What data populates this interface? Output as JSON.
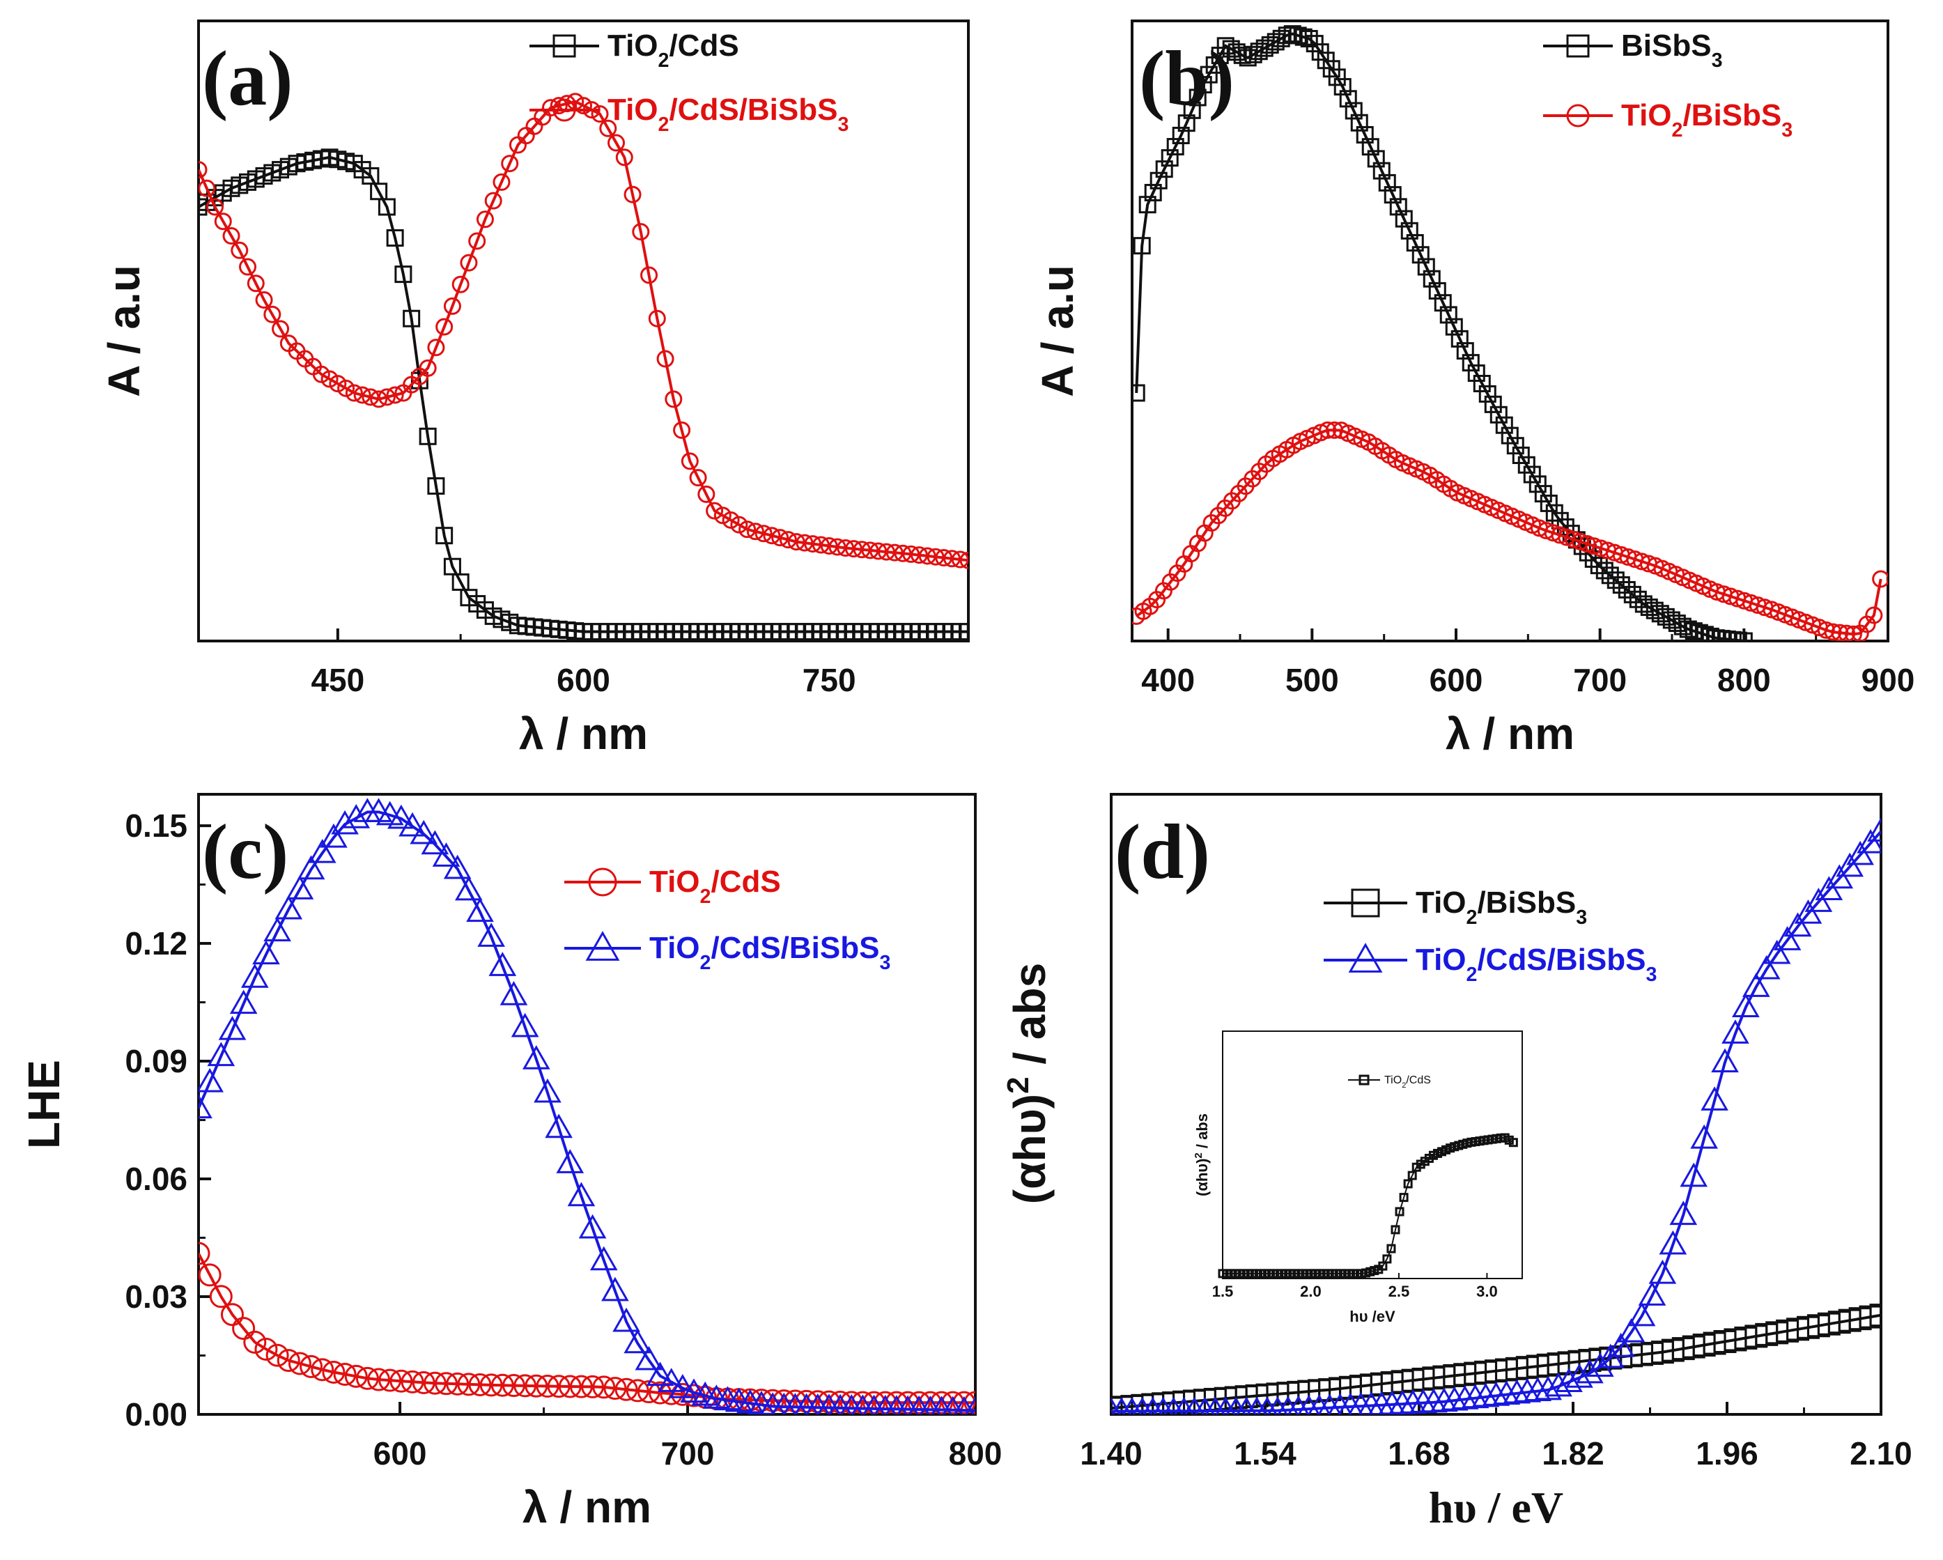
{
  "chart_data": [
    {
      "panel": "(a)",
      "type": "scatter",
      "xlabel": "λ / nm",
      "ylabel": "A / a.u",
      "xlim": [
        365,
        835
      ],
      "ylim": [
        0,
        1
      ],
      "xticks": [
        450,
        600,
        750
      ],
      "y_ticks_labeled": false,
      "legend_position": "top-right",
      "series": [
        {
          "name": "TiO2/CdS",
          "color": "#111111",
          "marker": "square",
          "x": [
            365,
            385,
            405,
            425,
            445,
            460,
            470,
            480,
            488,
            495,
            500,
            505,
            510,
            515,
            520,
            530,
            545,
            560,
            580,
            600,
            650,
            700,
            750,
            800,
            835
          ],
          "y": [
            0.7,
            0.73,
            0.75,
            0.77,
            0.78,
            0.77,
            0.75,
            0.7,
            0.62,
            0.52,
            0.42,
            0.33,
            0.25,
            0.17,
            0.12,
            0.07,
            0.04,
            0.025,
            0.02,
            0.015,
            0.015,
            0.015,
            0.015,
            0.015,
            0.015
          ]
        },
        {
          "name": "TiO2/CdS/BiSbS3",
          "color": "#e01010",
          "marker": "circle",
          "x": [
            365,
            375,
            390,
            405,
            420,
            440,
            460,
            475,
            490,
            505,
            520,
            540,
            560,
            580,
            595,
            610,
            625,
            635,
            645,
            655,
            665,
            680,
            700,
            730,
            760,
            800,
            835
          ],
          "y": [
            0.76,
            0.7,
            0.63,
            0.55,
            0.48,
            0.43,
            0.4,
            0.39,
            0.4,
            0.44,
            0.54,
            0.68,
            0.8,
            0.86,
            0.87,
            0.85,
            0.78,
            0.66,
            0.52,
            0.39,
            0.29,
            0.21,
            0.18,
            0.16,
            0.15,
            0.14,
            0.13
          ]
        }
      ]
    },
    {
      "panel": "(b)",
      "type": "scatter",
      "xlabel": "λ  / nm",
      "ylabel": "A / a.u",
      "xlim": [
        375,
        900
      ],
      "ylim": [
        0,
        1
      ],
      "xticks": [
        400,
        500,
        600,
        700,
        800,
        900
      ],
      "y_ticks_labeled": false,
      "legend_position": "top-right",
      "series": [
        {
          "name": "BiSbS3",
          "color": "#111111",
          "marker": "square",
          "x": [
            378,
            380,
            385,
            395,
            410,
            425,
            440,
            455,
            470,
            485,
            500,
            520,
            550,
            580,
            610,
            640,
            670,
            700,
            730,
            760,
            780,
            800
          ],
          "y": [
            0.4,
            0.6,
            0.7,
            0.75,
            0.82,
            0.9,
            0.96,
            0.94,
            0.96,
            0.98,
            0.97,
            0.9,
            0.75,
            0.6,
            0.45,
            0.32,
            0.2,
            0.12,
            0.06,
            0.02,
            0.005,
            0.0
          ]
        },
        {
          "name": "TiO2/BiSbS3",
          "color": "#e01010",
          "marker": "circle",
          "x": [
            378,
            390,
            410,
            430,
            450,
            470,
            490,
            510,
            520,
            540,
            560,
            580,
            600,
            630,
            660,
            700,
            740,
            780,
            820,
            860,
            880,
            893,
            895
          ],
          "y": [
            0.04,
            0.06,
            0.12,
            0.19,
            0.24,
            0.29,
            0.32,
            0.34,
            0.34,
            0.32,
            0.29,
            0.27,
            0.24,
            0.21,
            0.18,
            0.15,
            0.12,
            0.08,
            0.05,
            0.015,
            0.01,
            0.05,
            0.1
          ]
        }
      ]
    },
    {
      "panel": "(c)",
      "type": "scatter",
      "xlabel": "λ / nm",
      "ylabel": "LHE",
      "xlim": [
        530,
        800
      ],
      "ylim": [
        0,
        0.158
      ],
      "xticks": [
        600,
        700,
        800
      ],
      "yticks": [
        "0.00",
        "0.03",
        "0.06",
        "0.09",
        "0.12",
        "0.15"
      ],
      "legend_position": "top-right",
      "series": [
        {
          "name": "TiO2/CdS",
          "color": "#e01010",
          "marker": "circle",
          "x": [
            530,
            540,
            550,
            560,
            575,
            590,
            610,
            630,
            650,
            670,
            690,
            700,
            710,
            730,
            760,
            800
          ],
          "y": [
            0.041,
            0.027,
            0.018,
            0.014,
            0.011,
            0.009,
            0.008,
            0.0075,
            0.0072,
            0.007,
            0.0055,
            0.005,
            0.004,
            0.0035,
            0.003,
            0.003
          ]
        },
        {
          "name": "TiO2/CdS/BiSbS3",
          "color": "#1818e0",
          "marker": "triangle",
          "x": [
            530,
            540,
            550,
            560,
            570,
            580,
            590,
            600,
            610,
            620,
            630,
            640,
            650,
            660,
            670,
            680,
            690,
            700,
            710,
            730,
            760,
            800
          ],
          "y": [
            0.078,
            0.095,
            0.112,
            0.127,
            0.14,
            0.15,
            0.154,
            0.152,
            0.147,
            0.139,
            0.125,
            0.106,
            0.085,
            0.062,
            0.041,
            0.021,
            0.01,
            0.006,
            0.004,
            0.002,
            0.0015,
            0.001
          ]
        }
      ]
    },
    {
      "panel": "(d)",
      "type": "scatter",
      "xlabel": "hυ / eV",
      "ylabel": "(αhυ)2 / abs",
      "xlim": [
        1.4,
        2.1
      ],
      "ylim": [
        0,
        1
      ],
      "xticks": [
        "1.40",
        "1.54",
        "1.68",
        "1.82",
        "1.96",
        "2.10"
      ],
      "y_ticks_labeled": false,
      "legend_position": "top-left",
      "series": [
        {
          "name": "TiO2/BiSbS3",
          "color": "#111111",
          "marker": "square",
          "x": [
            1.4,
            1.5,
            1.6,
            1.7,
            1.8,
            1.9,
            2.0,
            2.1
          ],
          "y": [
            0.01,
            0.025,
            0.04,
            0.06,
            0.08,
            0.1,
            0.13,
            0.16
          ]
        },
        {
          "name": "TiO2/CdS/BiSbS3",
          "color": "#1818e0",
          "marker": "triangle",
          "x": [
            1.4,
            1.55,
            1.7,
            1.8,
            1.84,
            1.86,
            1.88,
            1.9,
            1.92,
            1.94,
            1.96,
            1.98,
            2.0,
            2.03,
            2.06,
            2.1
          ],
          "y": [
            0.005,
            0.006,
            0.02,
            0.04,
            0.07,
            0.1,
            0.15,
            0.22,
            0.32,
            0.45,
            0.58,
            0.67,
            0.73,
            0.8,
            0.86,
            0.94
          ]
        }
      ],
      "inset": {
        "xlabel": "hυ /eV",
        "ylabel": "(αhυ)2 / abs",
        "xlim": [
          1.5,
          3.2
        ],
        "ylim": [
          0,
          1
        ],
        "xticks": [
          "1.5",
          "2.0",
          "2.5",
          "3.0"
        ],
        "series": [
          {
            "name": "TiO2/CdS",
            "color": "#111111",
            "marker": "square",
            "x": [
              1.5,
              1.8,
              2.1,
              2.3,
              2.4,
              2.45,
              2.5,
              2.55,
              2.6,
              2.7,
              2.8,
              2.9,
              3.0,
              3.1,
              3.15
            ],
            "y": [
              0.02,
              0.02,
              0.02,
              0.02,
              0.04,
              0.1,
              0.26,
              0.38,
              0.45,
              0.5,
              0.53,
              0.55,
              0.56,
              0.57,
              0.55
            ]
          }
        ]
      }
    }
  ],
  "legend": {
    "a": {
      "items": [
        {
          "main": "TiO",
          "sub": "2",
          "rest": "/CdS",
          "sub2": ""
        },
        {
          "main": "TiO",
          "sub": "2",
          "rest": "/CdS/BiSbS",
          "sub2": "3"
        }
      ]
    },
    "b": {
      "items": [
        {
          "main": "BiSbS",
          "sub": "3",
          "rest": "",
          "sub2": ""
        },
        {
          "main": "TiO",
          "sub": "2",
          "rest": "/BiSbS",
          "sub2": "3"
        }
      ]
    },
    "c": {
      "items": [
        {
          "main": "TiO",
          "sub": "2",
          "rest": "/CdS",
          "sub2": ""
        },
        {
          "main": "TiO",
          "sub": "2",
          "rest": "/CdS/BiSbS",
          "sub2": "3"
        }
      ]
    },
    "d": {
      "items": [
        {
          "main": "TiO",
          "sub": "2",
          "rest": "/BiSbS",
          "sub2": "3"
        },
        {
          "main": "TiO",
          "sub": "2",
          "rest": "/CdS/BiSbS",
          "sub2": "3"
        }
      ],
      "inset_item": {
        "main": "TiO",
        "sub": "2",
        "rest": "/CdS",
        "sub2": ""
      }
    }
  },
  "ylabel_parts": {
    "d_main": "(αhυ)",
    "d_sup": "2",
    "d_rest": " / abs",
    "inset_main": "(αhυ)",
    "inset_sup": "2",
    "inset_rest": " / abs"
  }
}
